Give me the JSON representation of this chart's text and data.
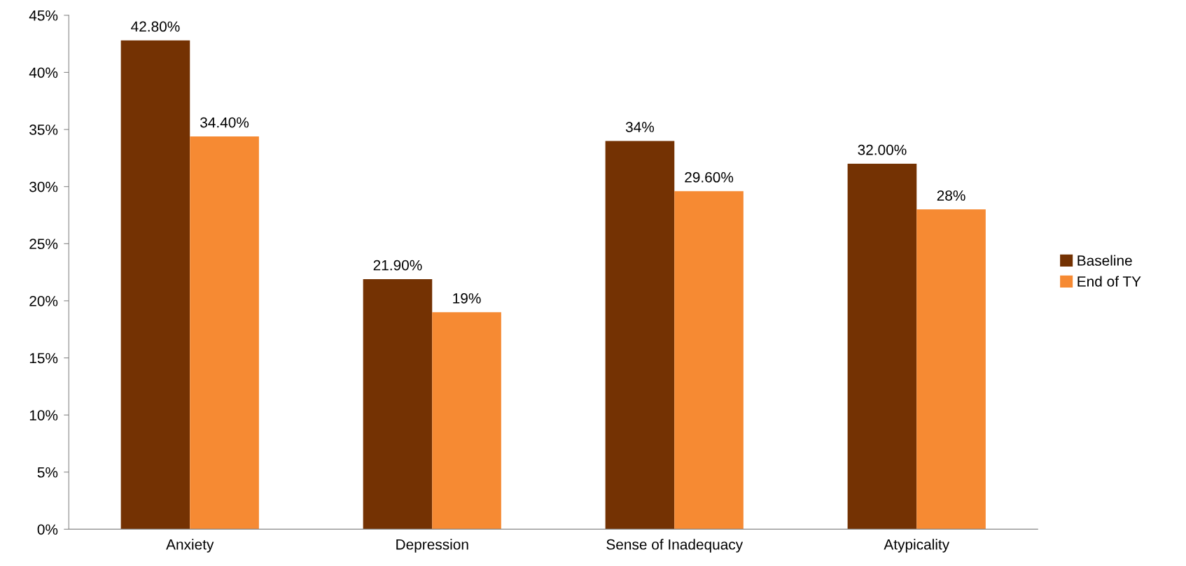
{
  "chart_data": {
    "type": "bar",
    "categories": [
      "Anxiety",
      "Depression",
      "Sense of Inadequacy",
      "Atypicality"
    ],
    "series": [
      {
        "name": "Baseline",
        "color": "#743203",
        "values": [
          42.8,
          21.9,
          34,
          32
        ],
        "value_labels": [
          "42.80%",
          "21.90%",
          "34%",
          "32.00%"
        ]
      },
      {
        "name": "End of TY",
        "color": "#f68a33",
        "values": [
          34.4,
          19,
          29.6,
          28
        ],
        "value_labels": [
          "34.40%",
          "19%",
          "29.60%",
          "28%"
        ]
      }
    ],
    "ylim": [
      0,
      45
    ],
    "yticks": [
      {
        "value": 0,
        "label": "0%"
      },
      {
        "value": 5,
        "label": "5%"
      },
      {
        "value": 10,
        "label": "10%"
      },
      {
        "value": 15,
        "label": "15%"
      },
      {
        "value": 20,
        "label": "20%"
      },
      {
        "value": 25,
        "label": "25%"
      },
      {
        "value": 30,
        "label": "30%"
      },
      {
        "value": 35,
        "label": "35%"
      },
      {
        "value": 40,
        "label": "40%"
      },
      {
        "value": 45,
        "label": "45%"
      }
    ],
    "grid": false,
    "legend": "right"
  }
}
